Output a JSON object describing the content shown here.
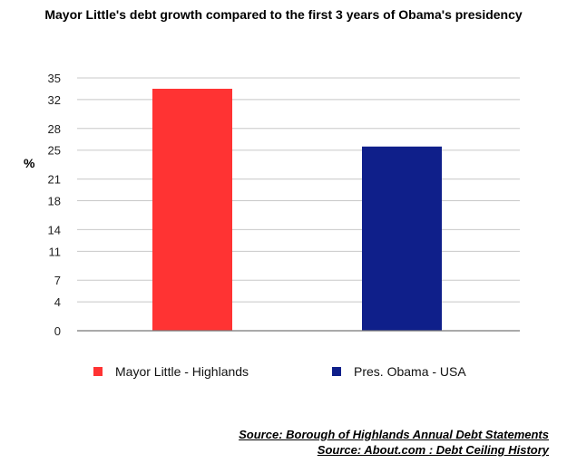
{
  "chart_data": {
    "type": "bar",
    "title": "Mayor Little's debt growth compared to the first 3 years of Obama's presidency",
    "ylabel": "%",
    "xlabel": "",
    "categories": [
      "Mayor Little - Highlands",
      "Pres. Obama - USA"
    ],
    "values": [
      33.5,
      25.5
    ],
    "colors": [
      "#ff3333",
      "#0f1f8a"
    ],
    "yticks": [
      0,
      4,
      7,
      11,
      14,
      18,
      21,
      25,
      28,
      32,
      35
    ],
    "ylim": [
      0,
      35
    ],
    "grid": true,
    "legend": [
      {
        "label": "Mayor Little - Highlands",
        "color": "#ff3333"
      },
      {
        "label": "Pres. Obama - USA",
        "color": "#0f1f8a"
      }
    ],
    "legend_position": "bottom"
  },
  "sources": [
    "Source: Borough of Highlands Annual Debt Statements",
    "Source: About.com : Debt Ceiling History"
  ]
}
